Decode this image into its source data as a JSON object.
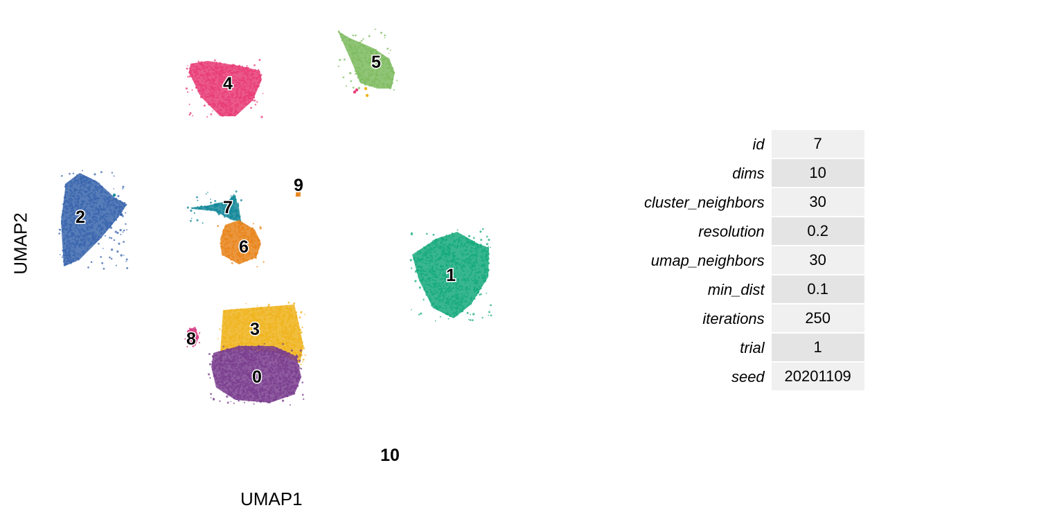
{
  "chart_data": {
    "type": "scatter",
    "xlabel": "UMAP1",
    "ylabel": "UMAP2",
    "grid": false,
    "legend": "none",
    "clusters": [
      {
        "label": "0",
        "color": "#7b3f8f"
      },
      {
        "label": "1",
        "color": "#16a97c"
      },
      {
        "label": "2",
        "color": "#3a66ad"
      },
      {
        "label": "3",
        "color": "#efb31c"
      },
      {
        "label": "4",
        "color": "#e83c77"
      },
      {
        "label": "5",
        "color": "#7dbb5f"
      },
      {
        "label": "6",
        "color": "#e8841b"
      },
      {
        "label": "7",
        "color": "#14889a"
      },
      {
        "label": "8",
        "color": "#d6337f"
      },
      {
        "label": "9",
        "color": "#e8841b"
      },
      {
        "label": "10",
        "color": "#999999"
      }
    ]
  },
  "table": {
    "rows": [
      {
        "key": "id",
        "value": "7"
      },
      {
        "key": "dims",
        "value": "10"
      },
      {
        "key": "cluster_neighbors",
        "value": "30"
      },
      {
        "key": "resolution",
        "value": "0.2"
      },
      {
        "key": "umap_neighbors",
        "value": "30"
      },
      {
        "key": "min_dist",
        "value": "0.1"
      },
      {
        "key": "iterations",
        "value": "250"
      },
      {
        "key": "trial",
        "value": "1"
      },
      {
        "key": "seed",
        "value": "20201109"
      }
    ]
  }
}
